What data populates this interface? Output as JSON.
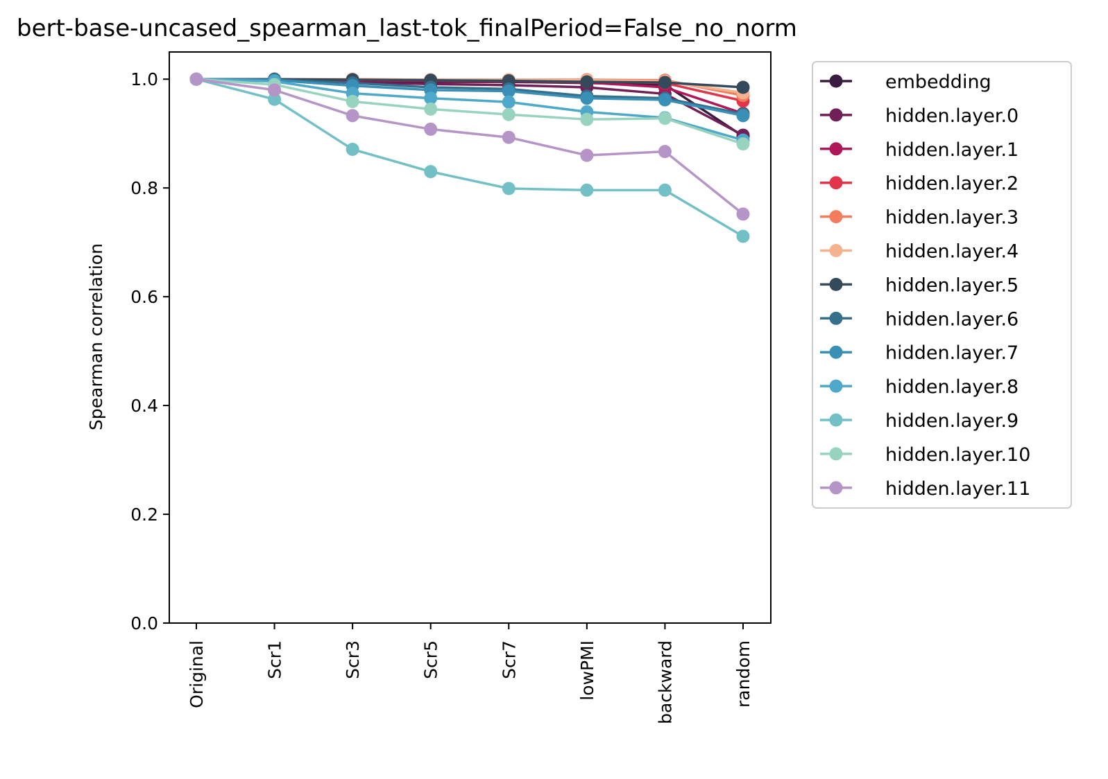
{
  "chart_data": {
    "type": "line",
    "title": "bert-base-uncased_spearman_last-tok_finalPeriod=False_no_norm",
    "xlabel": "",
    "ylabel": "Spearman correlation",
    "categories": [
      "Original",
      "Scr1",
      "Scr3",
      "Scr5",
      "Scr7",
      "lowPMI",
      "backward",
      "random"
    ],
    "ylim": [
      0.0,
      1.05
    ],
    "yticks": [
      0.0,
      0.2,
      0.4,
      0.6,
      0.8,
      1.0
    ],
    "ytick_labels": [
      "0.0",
      "0.2",
      "0.4",
      "0.6",
      "0.8",
      "1.0"
    ],
    "grid": false,
    "legend_position": "outside-right",
    "series": [
      {
        "name": "embedding",
        "color": "#3b1c41",
        "values": [
          1.0,
          0.999,
          0.997,
          0.995,
          0.995,
          0.993,
          0.99,
          0.895
        ]
      },
      {
        "name": "hidden.layer.0",
        "color": "#711f57",
        "values": [
          1.0,
          0.998,
          0.994,
          0.991,
          0.989,
          0.985,
          0.973,
          0.897
        ]
      },
      {
        "name": "hidden.layer.1",
        "color": "#b01759",
        "values": [
          1.0,
          0.999,
          0.998,
          0.997,
          0.996,
          0.994,
          0.985,
          0.937
        ]
      },
      {
        "name": "hidden.layer.2",
        "color": "#e1354a",
        "values": [
          1.0,
          1.0,
          0.999,
          0.998,
          0.997,
          0.996,
          0.993,
          0.96
        ]
      },
      {
        "name": "hidden.layer.3",
        "color": "#f47b5b",
        "values": [
          1.0,
          1.0,
          1.0,
          0.999,
          0.999,
          0.999,
          0.998,
          0.97
        ]
      },
      {
        "name": "hidden.layer.4",
        "color": "#f5b28e",
        "values": [
          1.0,
          1.0,
          1.0,
          0.999,
          0.999,
          0.998,
          0.996,
          0.975
        ]
      },
      {
        "name": "hidden.layer.5",
        "color": "#34495a",
        "values": [
          1.0,
          1.0,
          0.999,
          0.998,
          0.997,
          0.995,
          0.994,
          0.985
        ]
      },
      {
        "name": "hidden.layer.6",
        "color": "#366f8c",
        "values": [
          1.0,
          0.999,
          0.993,
          0.985,
          0.982,
          0.969,
          0.965,
          0.936
        ]
      },
      {
        "name": "hidden.layer.7",
        "color": "#3a8fb7",
        "values": [
          1.0,
          0.998,
          0.988,
          0.98,
          0.978,
          0.965,
          0.962,
          0.933
        ]
      },
      {
        "name": "hidden.layer.8",
        "color": "#4ea8c9",
        "values": [
          1.0,
          0.996,
          0.974,
          0.965,
          0.958,
          0.94,
          0.929,
          0.888
        ]
      },
      {
        "name": "hidden.layer.9",
        "color": "#72c0c6",
        "values": [
          1.0,
          0.963,
          0.871,
          0.83,
          0.799,
          0.796,
          0.796,
          0.711
        ]
      },
      {
        "name": "hidden.layer.10",
        "color": "#97d3bf",
        "values": [
          1.0,
          0.99,
          0.959,
          0.945,
          0.935,
          0.926,
          0.928,
          0.881
        ]
      },
      {
        "name": "hidden.layer.11",
        "color": "#b594c8",
        "values": [
          1.0,
          0.98,
          0.933,
          0.908,
          0.893,
          0.86,
          0.867,
          0.752
        ]
      }
    ]
  }
}
